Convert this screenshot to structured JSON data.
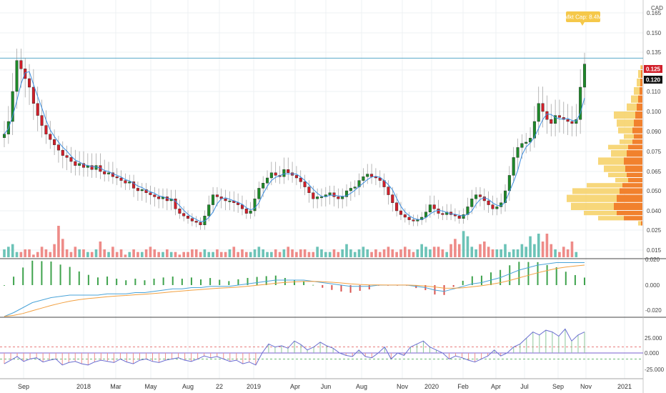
{
  "currency_label": "CAD",
  "callout_text": "Mkt Cap: 8.4M",
  "price_badges": {
    "current": "0.125",
    "previous": "0.120"
  },
  "colors": {
    "up": "#1e8a2a",
    "down": "#d11f2a",
    "vol_up": "#6cc3b7",
    "vol_down": "#ee8b88",
    "ma": "#3b8de0",
    "hline": "#5aa9c9",
    "vp_up": "#f6d36b",
    "vp_down": "#f07a22",
    "macd_line": "#4aa3d8",
    "signal_line": "#f2a041",
    "hist_up": "#3fa34d",
    "hist_down": "#d9534f",
    "stoch": "#6b6fd1",
    "callout_bg": "#f5c84a",
    "badge_red": "#d11f2a",
    "badge_dark": "#111111"
  },
  "price_axis": {
    "ticks": [
      "0.165",
      "0.150",
      "0.135",
      "0.120",
      "0.110",
      "0.100",
      "0.090",
      "0.075",
      "0.065",
      "0.050",
      "0.040",
      "0.025",
      "0.015"
    ]
  },
  "macd_axis": {
    "ticks": [
      "0.020",
      "0.000",
      "-0.020"
    ]
  },
  "stoch_axis": {
    "ticks": [
      "25.000",
      "0.000",
      "-25.000"
    ]
  },
  "dates": [
    "Sep",
    "2018",
    "Mar",
    "May",
    "Aug",
    "22",
    "2019",
    "Apr",
    "Jun",
    "Aug",
    "Nov",
    "2020",
    "Feb",
    "Apr",
    "Jul",
    "Sep",
    "Nov",
    "2021"
  ],
  "horizontal_level": 0.13,
  "chart_data": {
    "type": "candlestick",
    "price_close": [
      0.088,
      0.095,
      0.11,
      0.128,
      0.121,
      0.116,
      0.112,
      0.104,
      0.098,
      0.093,
      0.088,
      0.084,
      0.08,
      0.076,
      0.073,
      0.072,
      0.07,
      0.068,
      0.069,
      0.067,
      0.068,
      0.066,
      0.068,
      0.065,
      0.063,
      0.064,
      0.061,
      0.06,
      0.058,
      0.056,
      0.057,
      0.052,
      0.05,
      0.051,
      0.049,
      0.048,
      0.047,
      0.046,
      0.047,
      0.045,
      0.046,
      0.041,
      0.038,
      0.036,
      0.034,
      0.032,
      0.031,
      0.029,
      0.036,
      0.043,
      0.048,
      0.047,
      0.046,
      0.045,
      0.045,
      0.044,
      0.043,
      0.041,
      0.038,
      0.04,
      0.046,
      0.052,
      0.056,
      0.06,
      0.064,
      0.062,
      0.061,
      0.066,
      0.064,
      0.062,
      0.06,
      0.057,
      0.053,
      0.049,
      0.046,
      0.047,
      0.047,
      0.048,
      0.049,
      0.047,
      0.046,
      0.047,
      0.05,
      0.052,
      0.053,
      0.058,
      0.061,
      0.063,
      0.061,
      0.06,
      0.058,
      0.053,
      0.048,
      0.044,
      0.04,
      0.037,
      0.035,
      0.033,
      0.032,
      0.033,
      0.035,
      0.039,
      0.043,
      0.041,
      0.038,
      0.037,
      0.039,
      0.037,
      0.036,
      0.034,
      0.037,
      0.042,
      0.046,
      0.048,
      0.047,
      0.045,
      0.043,
      0.041,
      0.042,
      0.044,
      0.05,
      0.062,
      0.072,
      0.078,
      0.081,
      0.082,
      0.085,
      0.095,
      0.104,
      0.1,
      0.096,
      0.094,
      0.098,
      0.097,
      0.096,
      0.095,
      0.094,
      0.096,
      0.112,
      0.125
    ],
    "volume": [
      3,
      4,
      5,
      2,
      2,
      3,
      3,
      1,
      2,
      4,
      3,
      2,
      5,
      12,
      7,
      3,
      2,
      4,
      3,
      3,
      2,
      2,
      3,
      6,
      3,
      2,
      4,
      2,
      3,
      1,
      2,
      3,
      2,
      2,
      3,
      4,
      3,
      2,
      2,
      3,
      2,
      2,
      1,
      2,
      2,
      3,
      3,
      2,
      3,
      2,
      2,
      3,
      2,
      2,
      3,
      4,
      2,
      3,
      2,
      2,
      3,
      4,
      3,
      2,
      2,
      3,
      2,
      3,
      4,
      3,
      2,
      3,
      3,
      2,
      2,
      4,
      3,
      2,
      2,
      3,
      2,
      3,
      5,
      3,
      2,
      3,
      4,
      3,
      2,
      3,
      2,
      3,
      4,
      3,
      2,
      3,
      4,
      3,
      2,
      3,
      5,
      4,
      3,
      4,
      4,
      3,
      2,
      5,
      7,
      5,
      10,
      8,
      4,
      3,
      5,
      6,
      4,
      3,
      3,
      3,
      5,
      2,
      3,
      3,
      5,
      4,
      8,
      5,
      9,
      6,
      9,
      5,
      3,
      2,
      4,
      3,
      6,
      2
    ],
    "macd": [
      -0.025,
      -0.022,
      -0.018,
      -0.014,
      -0.012,
      -0.01,
      -0.009,
      -0.008,
      -0.008,
      -0.008,
      -0.008,
      -0.007,
      -0.007,
      -0.007,
      -0.006,
      -0.006,
      -0.005,
      -0.004,
      -0.003,
      -0.003,
      -0.002,
      -0.002,
      -0.001,
      -0.001,
      -0.001,
      0.0,
      0.001,
      0.002,
      0.003,
      0.004,
      0.004,
      0.004,
      0.004,
      0.003,
      0.002,
      0.001,
      0.0,
      -0.001,
      -0.001,
      -0.001,
      0.0,
      0.0,
      0.0,
      0.0,
      -0.001,
      -0.002,
      -0.004,
      -0.005,
      -0.003,
      -0.001,
      0.001,
      0.002,
      0.004,
      0.006,
      0.009,
      0.012,
      0.014,
      0.016,
      0.017,
      0.018,
      0.018,
      0.018,
      0.018
    ],
    "stoch": [
      -18,
      -12,
      -6,
      -14,
      -10,
      -8,
      -15,
      -12,
      -10,
      -20,
      -16,
      -14,
      -18,
      -20,
      -15,
      -12,
      -14,
      -16,
      -10,
      -15,
      -18,
      -12,
      -10,
      -14,
      -16,
      -12,
      -10,
      -8,
      -12,
      -14,
      -10,
      -5,
      -8,
      -6,
      -10,
      -14,
      -12,
      -18,
      -15,
      -20,
      0,
      15,
      10,
      12,
      8,
      20,
      14,
      5,
      10,
      18,
      12,
      8,
      0,
      -4,
      -6,
      5,
      -6,
      -8,
      0,
      10,
      -10,
      0,
      -4,
      10,
      15,
      20,
      10,
      5,
      0,
      -10,
      -5,
      -8,
      -12,
      -15,
      -10,
      -5,
      5,
      -5,
      0,
      10,
      15,
      25,
      35,
      30,
      38,
      35,
      28,
      40,
      20,
      30,
      35
    ],
    "horizontal_level": 0.13
  }
}
